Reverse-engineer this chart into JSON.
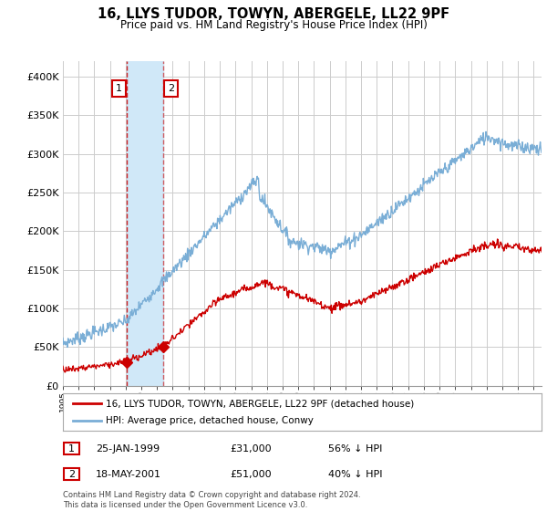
{
  "title": "16, LLYS TUDOR, TOWYN, ABERGELE, LL22 9PF",
  "subtitle": "Price paid vs. HM Land Registry's House Price Index (HPI)",
  "ylim": [
    0,
    420000
  ],
  "yticks": [
    0,
    50000,
    100000,
    150000,
    200000,
    250000,
    300000,
    350000,
    400000
  ],
  "xlim_start": 1995.0,
  "xlim_end": 2025.5,
  "sale1_date": 1999.07,
  "sale1_price": 31000,
  "sale2_date": 2001.38,
  "sale2_price": 51000,
  "red_line_color": "#cc0000",
  "blue_line_color": "#7aaed6",
  "shade_color": "#d0e8f8",
  "legend_label_red": "16, LLYS TUDOR, TOWYN, ABERGELE, LL22 9PF (detached house)",
  "legend_label_blue": "HPI: Average price, detached house, Conwy",
  "table_rows": [
    {
      "num": "1",
      "date": "25-JAN-1999",
      "price": "£31,000",
      "pct": "56% ↓ HPI"
    },
    {
      "num": "2",
      "date": "18-MAY-2001",
      "price": "£51,000",
      "pct": "40% ↓ HPI"
    }
  ],
  "footnote": "Contains HM Land Registry data © Crown copyright and database right 2024.\nThis data is licensed under the Open Government Licence v3.0.",
  "background_color": "#ffffff",
  "grid_color": "#cccccc"
}
